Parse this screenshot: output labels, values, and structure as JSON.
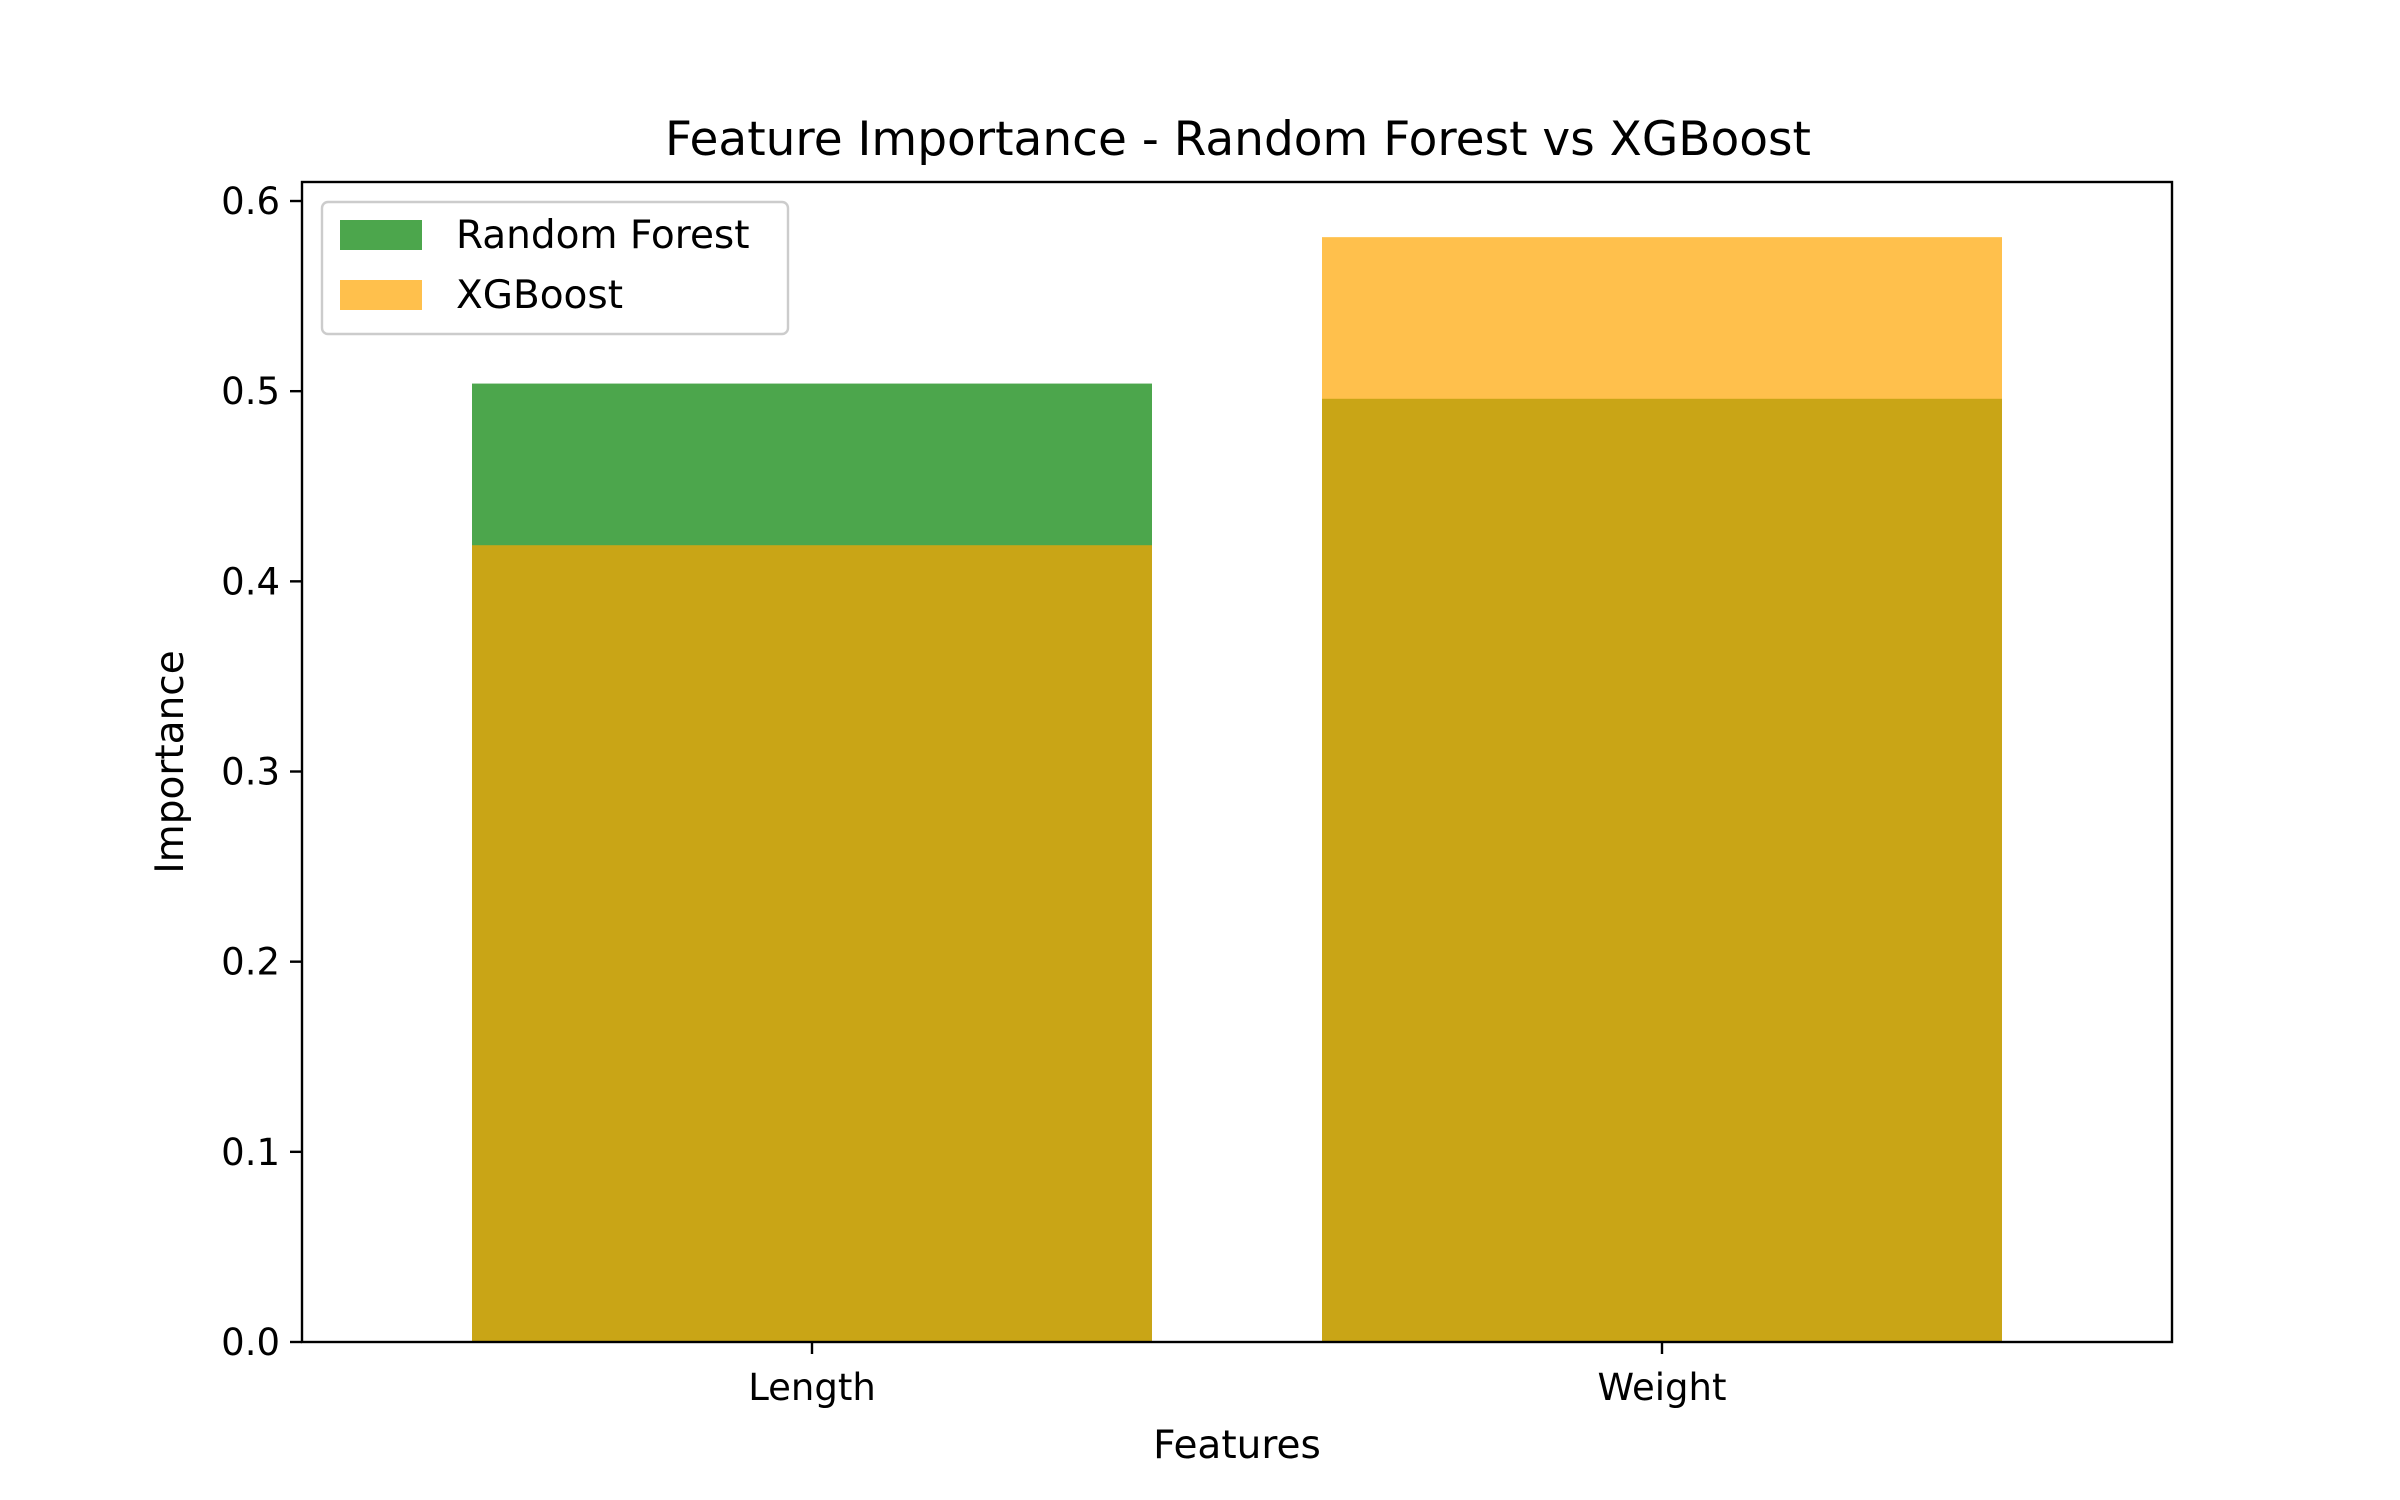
{
  "chart_data": {
    "type": "bar",
    "title": "Feature Importance - Random Forest vs XGBoost",
    "xlabel": "Features",
    "ylabel": "Importance",
    "categories": [
      "Length",
      "Weight"
    ],
    "ylim": [
      0,
      0.61
    ],
    "yticks": [
      "0.0",
      "0.1",
      "0.2",
      "0.3",
      "0.4",
      "0.5",
      "0.6"
    ],
    "yticks_values": [
      0.0,
      0.1,
      0.2,
      0.3,
      0.4,
      0.5,
      0.6
    ],
    "overlay": true,
    "grid": false,
    "legend_position": "top-left",
    "series": [
      {
        "name": "Random Forest",
        "values": [
          0.504,
          0.496
        ],
        "color": "#008000",
        "opacity": 0.7
      },
      {
        "name": "XGBoost",
        "values": [
          0.419,
          0.581
        ],
        "color": "#FFA500",
        "opacity": 0.7
      }
    ]
  }
}
